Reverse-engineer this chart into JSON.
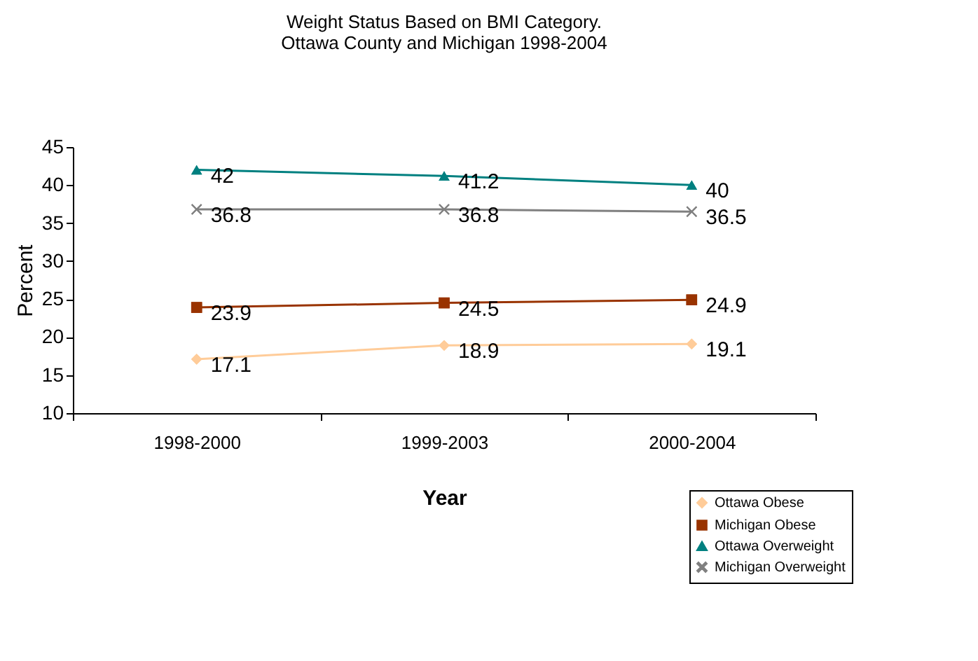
{
  "chart_data": {
    "type": "line",
    "title": [
      "Weight Status Based on BMI Category.",
      "Ottawa County and Michigan 1998-2004"
    ],
    "xlabel": "Year",
    "ylabel": "Percent",
    "categories": [
      "1998-2000",
      "1999-2003",
      "2000-2004"
    ],
    "series": [
      {
        "name": "Ottawa Obese",
        "color": "#ffcc99",
        "values": [
          17.1,
          18.9,
          19.1
        ],
        "marker": "diamond"
      },
      {
        "name": "Michigan Obese",
        "color": "#993300",
        "values": [
          23.9,
          24.5,
          24.9
        ],
        "marker": "square"
      },
      {
        "name": "Ottawa Overweight",
        "color": "#008080",
        "values": [
          42,
          41.2,
          40
        ],
        "marker": "triangle"
      },
      {
        "name": "Michigan Overweight",
        "color": "#808080",
        "values": [
          36.8,
          36.8,
          36.5
        ],
        "marker": "cross"
      }
    ],
    "ylim": [
      10,
      45
    ],
    "yticks": [
      10,
      15,
      20,
      25,
      30,
      35,
      40,
      45
    ],
    "grid": false,
    "legend": "bottom right",
    "data_labels": true,
    "line_style": "solid"
  }
}
